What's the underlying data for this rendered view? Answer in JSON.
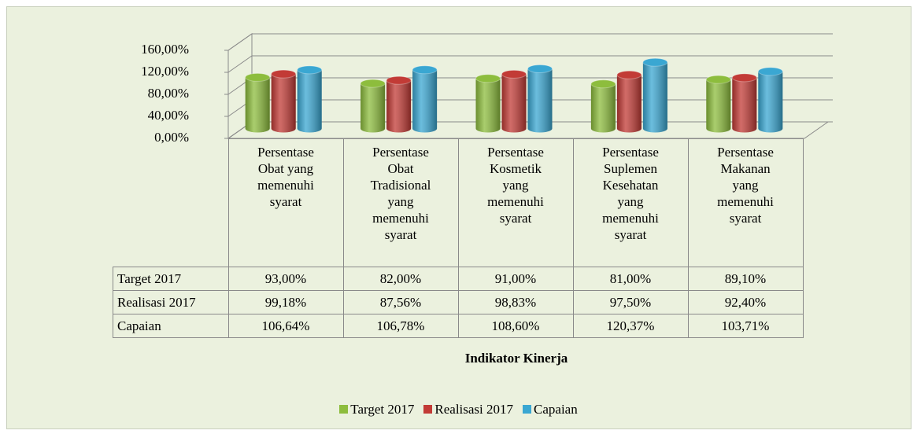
{
  "chart_data": {
    "type": "bar3d",
    "x_label": "Indikator Kinerja",
    "categories": [
      "Persentase Obat yang memenuhi syarat",
      "Persentase Obat Tradisional yang memenuhi syarat",
      "Persentase Kosmetik yang memenuhi syarat",
      "Persentase Suplemen Kesehatan yang memenuhi syarat",
      "Persentase Makanan yang memenuhi syarat"
    ],
    "series": [
      {
        "name": "Target 2017",
        "color": "#8dbd3d",
        "values": [
          93,
          82,
          91,
          81,
          89.1
        ],
        "value_labels": [
          "93,00%",
          "82,00%",
          "91,00%",
          "81,00%",
          "89,10%"
        ]
      },
      {
        "name": "Realisasi 2017",
        "color": "#c23b36",
        "values": [
          99.18,
          87.56,
          98.83,
          97.5,
          92.4
        ],
        "value_labels": [
          "99,18%",
          "87,56%",
          "98,83%",
          "97,50%",
          "92,40%"
        ]
      },
      {
        "name": "Capaian",
        "color": "#3aa7d2",
        "values": [
          106.64,
          106.78,
          108.6,
          120.37,
          103.71
        ],
        "value_labels": [
          "106,64%",
          "106,78%",
          "108,60%",
          "120,37%",
          "103,71%"
        ]
      }
    ],
    "ylim": [
      0,
      160
    ],
    "yticks": [
      {
        "value": 0,
        "label": "0,00%"
      },
      {
        "value": 40,
        "label": "40,00%"
      },
      {
        "value": 80,
        "label": "80,00%"
      },
      {
        "value": 120,
        "label": "120,00%"
      },
      {
        "value": 160,
        "label": "160,00%"
      }
    ],
    "grid": true,
    "legend": "bottom"
  }
}
